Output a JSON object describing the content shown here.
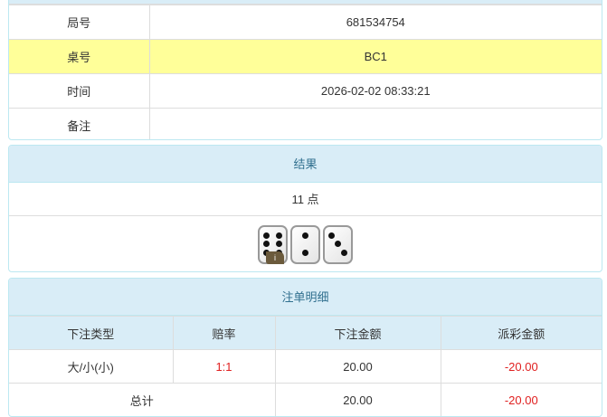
{
  "info_table": [
    {
      "label": "局号",
      "value": "681534754",
      "highlight": false
    },
    {
      "label": "桌号",
      "value": "BC1",
      "highlight": true
    },
    {
      "label": "时间",
      "value": "2026-02-02 08:33:21",
      "highlight": false
    },
    {
      "label": "备注",
      "value": "",
      "highlight": false
    }
  ],
  "result": {
    "title": "结果",
    "points": "11 点",
    "dice": [
      6,
      2,
      3
    ],
    "info_badge": "i"
  },
  "bets": {
    "title": "注单明细",
    "headers": [
      "下注类型",
      "赔率",
      "下注金额",
      "派彩金额"
    ],
    "rows": [
      {
        "type": "大/小(小)",
        "odds": "1:1",
        "amount": "20.00",
        "payout": "-20.00"
      }
    ],
    "total": {
      "label": "总计",
      "amount": "20.00",
      "payout": "-20.00"
    }
  },
  "colors": {
    "header_bg": "#d9edf7",
    "highlight_row": "#ffff99",
    "negative": "#e02020"
  }
}
